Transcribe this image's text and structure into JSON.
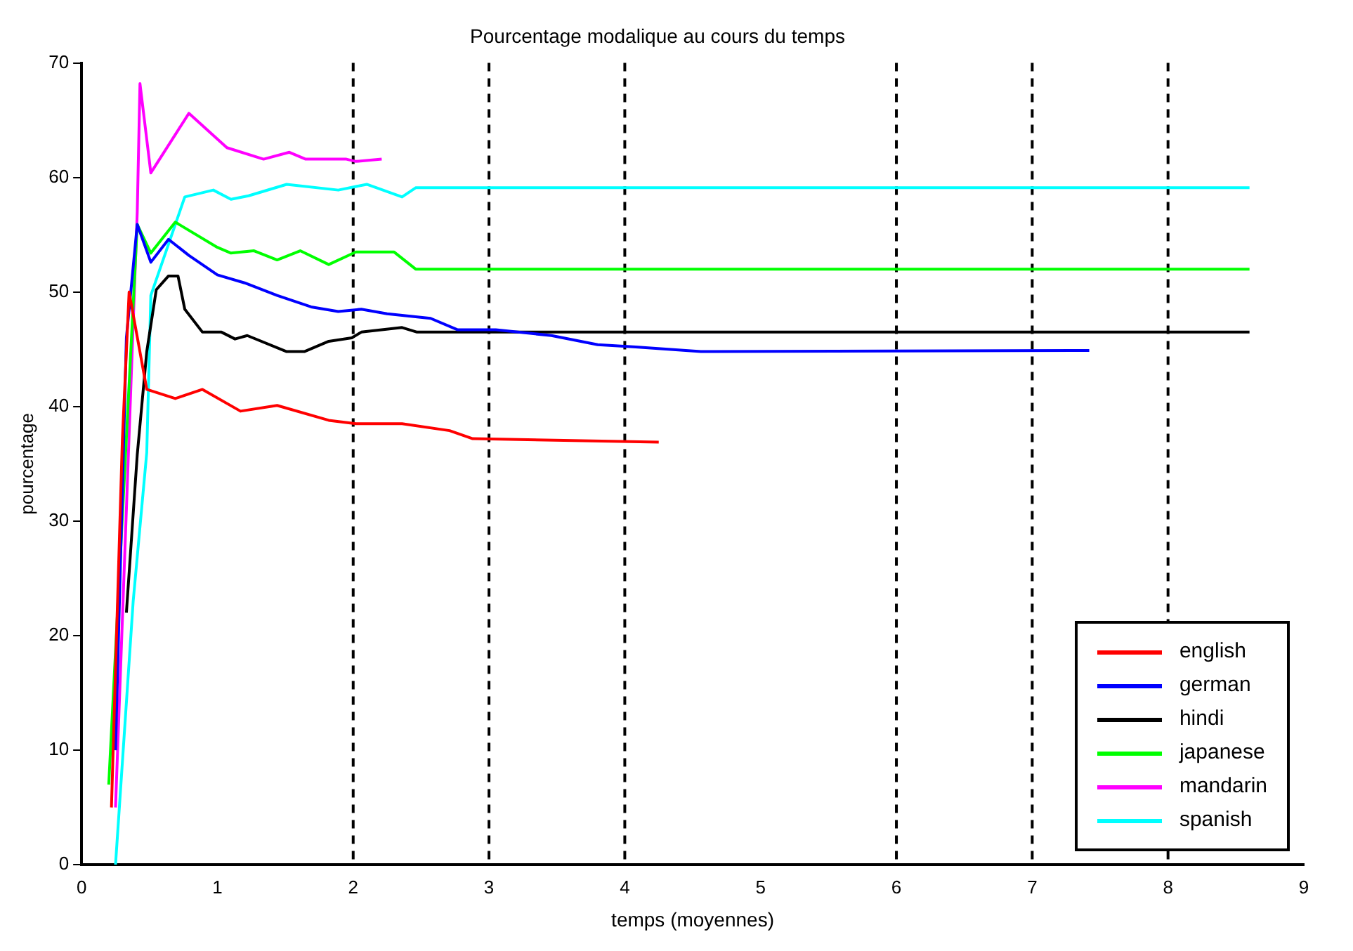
{
  "chart_data": {
    "type": "line",
    "title": "Pourcentage modalique au cours du temps",
    "xlabel": "temps (moyennes)",
    "ylabel": "pourcentage",
    "xlim": [
      0,
      9
    ],
    "xticks": [
      0,
      1,
      2,
      3,
      4,
      5,
      6,
      7,
      8,
      9
    ],
    "ylim": [
      0,
      70
    ],
    "yticks": [
      0,
      10,
      20,
      30,
      40,
      50,
      60,
      70
    ],
    "grid": false,
    "legend": "bottom right",
    "marker": "none",
    "line_style": "solid",
    "ref_lines": [
      {
        "axis": "x",
        "value": 2,
        "color": "#000000",
        "line_style": "dashed"
      },
      {
        "axis": "x",
        "value": 3,
        "color": "#000000",
        "line_style": "dashed"
      },
      {
        "axis": "x",
        "value": 4,
        "color": "#000000",
        "line_style": "dashed"
      },
      {
        "axis": "x",
        "value": 6,
        "color": "#000000",
        "line_style": "dashed"
      },
      {
        "axis": "x",
        "value": 7,
        "color": "#000000",
        "line_style": "dashed"
      },
      {
        "axis": "x",
        "value": 8,
        "color": "#000000",
        "line_style": "dashed"
      }
    ],
    "series": [
      {
        "name": "english",
        "color": "#ff0000",
        "x": [
          0.22,
          0.3,
          0.35,
          0.48,
          0.69,
          0.89,
          1.17,
          1.44,
          1.82,
          2.02,
          2.36,
          2.71,
          2.88,
          4.25
        ],
        "values": [
          5,
          37,
          50,
          41.5,
          40.7,
          41.5,
          39.6,
          40.1,
          38.8,
          38.5,
          38.5,
          37.9,
          37.2,
          36.9
        ]
      },
      {
        "name": "german",
        "color": "#0000ff",
        "x": [
          0.25,
          0.33,
          0.41,
          0.51,
          0.64,
          0.79,
          1.0,
          1.2,
          1.44,
          1.69,
          1.89,
          2.06,
          2.25,
          2.57,
          2.77,
          3.05,
          3.46,
          3.8,
          4.08,
          4.56,
          7.42
        ],
        "values": [
          10,
          46,
          55.9,
          52.6,
          54.6,
          53.2,
          51.5,
          50.8,
          49.7,
          48.7,
          48.3,
          48.5,
          48.1,
          47.7,
          46.7,
          46.7,
          46.2,
          45.4,
          45.2,
          44.8,
          44.9
        ]
      },
      {
        "name": "hindi",
        "color": "#000000",
        "x": [
          0.33,
          0.41,
          0.48,
          0.55,
          0.64,
          0.71,
          0.76,
          0.89,
          1.03,
          1.13,
          1.22,
          1.51,
          1.64,
          1.82,
          1.99,
          2.06,
          2.36,
          2.47,
          8.6
        ],
        "values": [
          22,
          35.8,
          44.8,
          50.2,
          51.4,
          51.4,
          48.5,
          46.5,
          46.5,
          45.9,
          46.2,
          44.8,
          44.8,
          45.7,
          46,
          46.5,
          46.9,
          46.5,
          46.5
        ]
      },
      {
        "name": "japanese",
        "color": "#00ff00",
        "x": [
          0.2,
          0.41,
          0.51,
          0.69,
          1.0,
          1.1,
          1.27,
          1.44,
          1.61,
          1.82,
          2.02,
          2.3,
          2.46,
          8.6
        ],
        "values": [
          7,
          55.9,
          53.4,
          56.1,
          53.9,
          53.4,
          53.6,
          52.8,
          53.6,
          52.4,
          53.5,
          53.5,
          52,
          52
        ]
      },
      {
        "name": "mandarin",
        "color": "#ff00ff",
        "x": [
          0.25,
          0.41,
          0.43,
          0.51,
          0.79,
          1.07,
          1.34,
          1.53,
          1.65,
          1.95,
          2.02,
          2.21
        ],
        "values": [
          5,
          57,
          68.2,
          60.4,
          65.6,
          62.6,
          61.6,
          62.2,
          61.6,
          61.6,
          61.4,
          61.6
        ]
      },
      {
        "name": "spanish",
        "color": "#00ffff",
        "x": [
          0.25,
          0.38,
          0.48,
          0.51,
          0.76,
          0.97,
          1.1,
          1.23,
          1.51,
          1.89,
          2.1,
          2.36,
          2.46,
          8.6
        ],
        "values": [
          0,
          23,
          36,
          49.7,
          58.3,
          58.9,
          58.1,
          58.4,
          59.4,
          58.9,
          59.4,
          58.3,
          59.1,
          59.1
        ]
      }
    ]
  }
}
